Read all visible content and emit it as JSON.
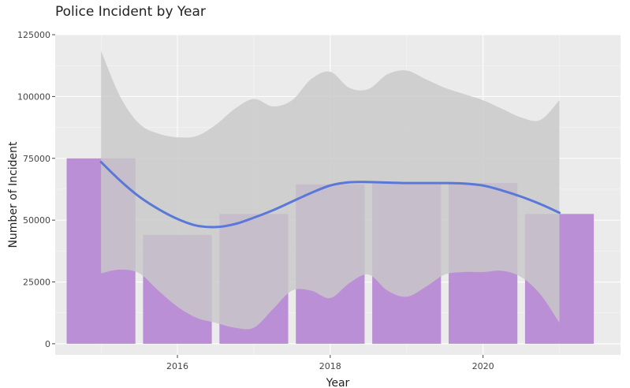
{
  "chart_data": {
    "type": "bar",
    "title": "Police Incident by Year",
    "xlabel": "Year",
    "ylabel": "Number of Incident",
    "xlim": [
      2014.4,
      2021.8
    ],
    "ylim": [
      -4500,
      125000
    ],
    "x_ticks": [
      2016,
      2018,
      2020
    ],
    "x_tick_labels": [
      "2016",
      "2018",
      "2020"
    ],
    "y_ticks": [
      0,
      25000,
      50000,
      75000,
      100000,
      125000
    ],
    "y_tick_labels": [
      "0",
      "25000",
      "50000",
      "75000",
      "100000",
      "125000"
    ],
    "grid": true,
    "bars": {
      "x": [
        2015,
        2016,
        2017,
        2018,
        2019,
        2020,
        2021
      ],
      "values": [
        75000,
        44000,
        52500,
        64500,
        65000,
        65000,
        52500
      ],
      "width": 0.9,
      "color": "#bb8fd5"
    },
    "smooth_line": {
      "x": [
        2015,
        2015.25,
        2015.5,
        2015.75,
        2016,
        2016.25,
        2016.5,
        2016.75,
        2017,
        2017.25,
        2017.5,
        2017.75,
        2018,
        2018.25,
        2018.5,
        2018.75,
        2019,
        2019.25,
        2019.5,
        2019.75,
        2020,
        2020.25,
        2020.5,
        2020.75,
        2021
      ],
      "values": [
        73500,
        66000,
        59500,
        54500,
        50500,
        47800,
        47200,
        48400,
        51000,
        54000,
        57500,
        61000,
        64000,
        65300,
        65400,
        65200,
        65000,
        65000,
        65000,
        64800,
        64000,
        62000,
        59500,
        56500,
        53000
      ],
      "color": "#5a78d8"
    },
    "confidence_band": {
      "x": [
        2015,
        2015.25,
        2015.5,
        2015.75,
        2016,
        2016.25,
        2016.5,
        2016.75,
        2017,
        2017.25,
        2017.5,
        2017.75,
        2018,
        2018.25,
        2018.5,
        2018.75,
        2019,
        2019.25,
        2019.5,
        2019.75,
        2020,
        2020.25,
        2020.5,
        2020.75,
        2021
      ],
      "upper": [
        118500,
        100000,
        89000,
        85000,
        83500,
        84000,
        88500,
        95000,
        99000,
        96000,
        98500,
        107000,
        110000,
        103500,
        103000,
        109000,
        110500,
        107000,
        103500,
        101000,
        98500,
        95000,
        91500,
        90500,
        98500
      ],
      "lower": [
        28500,
        30000,
        28500,
        21500,
        15000,
        10500,
        8500,
        6500,
        6500,
        14000,
        21500,
        21500,
        18500,
        24500,
        28000,
        21500,
        19000,
        23000,
        28000,
        29000,
        29000,
        29500,
        27000,
        20000,
        8500
      ],
      "color": "#c8c8c8"
    },
    "panel_background": "#ebebeb"
  }
}
